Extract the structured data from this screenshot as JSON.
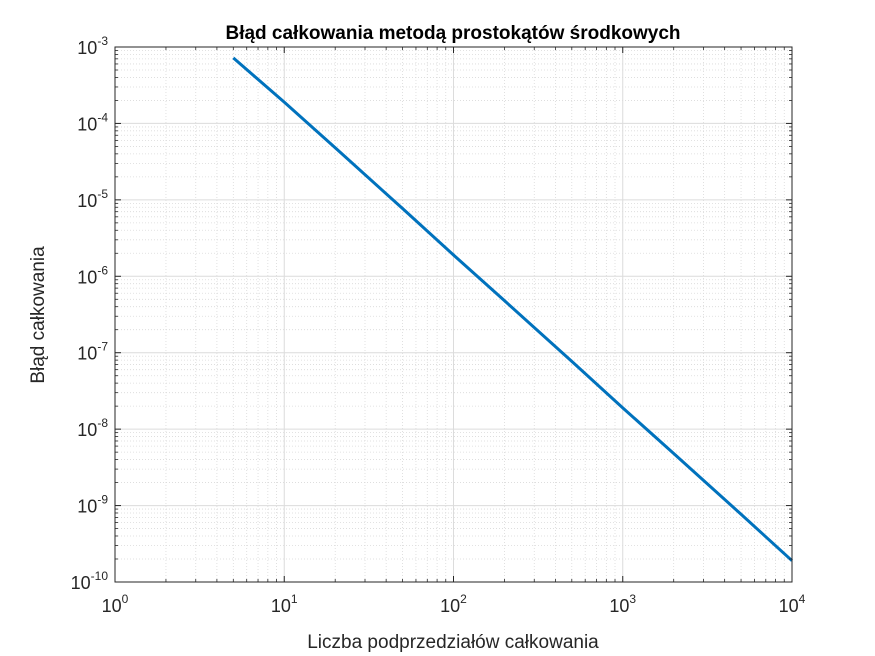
{
  "chart_data": {
    "type": "line",
    "title": "Błąd całkowania metodą prostokątów środkowych",
    "xlabel": "Liczba podprzedziałów całkowania",
    "ylabel": "Błąd całkowania",
    "xscale": "log",
    "yscale": "log",
    "xlim": [
      1,
      10000
    ],
    "ylim": [
      1e-10,
      0.001
    ],
    "grid": true,
    "minor_grid": true,
    "x_ticks": [
      {
        "base": "10",
        "exp": "0",
        "value": 1
      },
      {
        "base": "10",
        "exp": "1",
        "value": 10
      },
      {
        "base": "10",
        "exp": "2",
        "value": 100
      },
      {
        "base": "10",
        "exp": "3",
        "value": 1000
      },
      {
        "base": "10",
        "exp": "4",
        "value": 10000
      }
    ],
    "y_ticks": [
      {
        "base": "10",
        "exp": "-10",
        "value": 1e-10
      },
      {
        "base": "10",
        "exp": "-9",
        "value": 1e-09
      },
      {
        "base": "10",
        "exp": "-8",
        "value": 1e-08
      },
      {
        "base": "10",
        "exp": "-7",
        "value": 1e-07
      },
      {
        "base": "10",
        "exp": "-6",
        "value": 1e-06
      },
      {
        "base": "10",
        "exp": "-5",
        "value": 1e-05
      },
      {
        "base": "10",
        "exp": "-4",
        "value": 0.0001
      },
      {
        "base": "10",
        "exp": "-3",
        "value": 0.001
      }
    ],
    "series": [
      {
        "color": "#0072BD",
        "x": [
          5,
          10,
          20,
          50,
          100,
          200,
          500,
          1000,
          2000,
          5000,
          10000
        ],
        "y": [
          0.00072,
          0.00019,
          4.8e-05,
          7.7e-06,
          1.9e-06,
          4.8e-07,
          7.7e-08,
          1.9e-08,
          4.8e-09,
          7.7e-10,
          1.9e-10
        ]
      }
    ]
  }
}
